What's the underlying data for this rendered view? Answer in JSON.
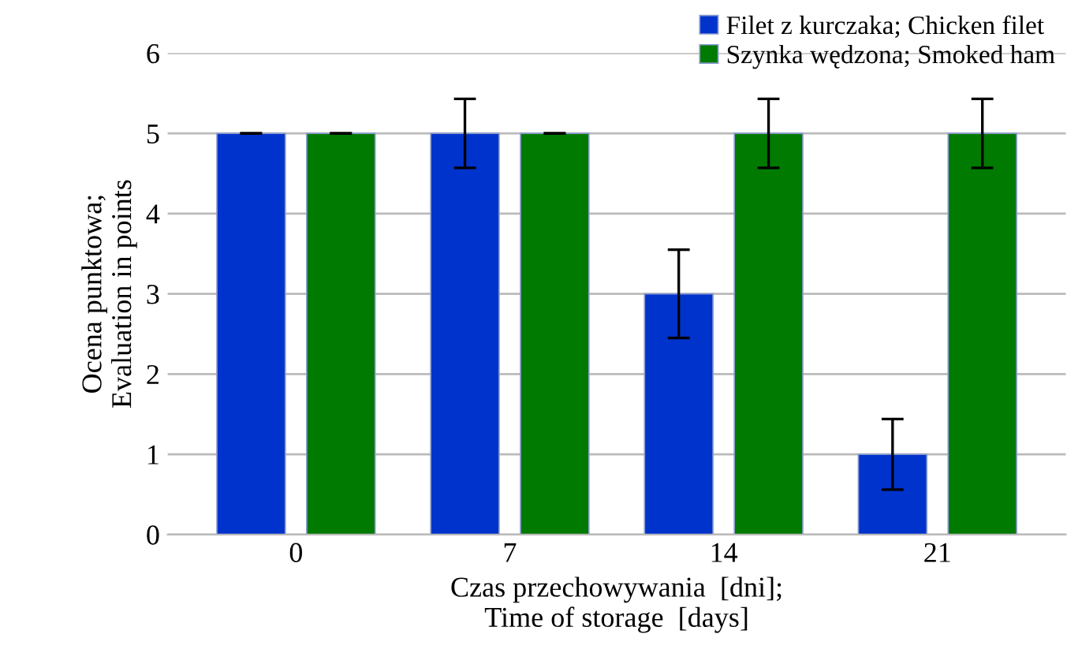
{
  "chart_data": {
    "type": "bar",
    "xlabel": "Czas przechowywania  [dni];\nTime of storage  [days]",
    "ylabel": "Ocena punktowa;\nEvaluation in points",
    "categories": [
      "0",
      "7",
      "14",
      "21"
    ],
    "series": [
      {
        "name": "Filet z kurczaka; Chicken filet",
        "color": "#0033cc",
        "values": [
          5,
          5,
          3,
          1
        ],
        "errors": [
          0,
          0.43,
          0.55,
          0.44
        ]
      },
      {
        "name": "Szynka wędzona; Smoked ham",
        "color": "#007a00",
        "values": [
          5,
          5,
          5,
          5
        ],
        "errors": [
          0,
          0,
          0.43,
          0.43
        ]
      }
    ],
    "ylim": [
      0,
      6
    ],
    "yticks": [
      0,
      1,
      2,
      3,
      4,
      5,
      6
    ],
    "grid": "y",
    "legend": "top right"
  }
}
